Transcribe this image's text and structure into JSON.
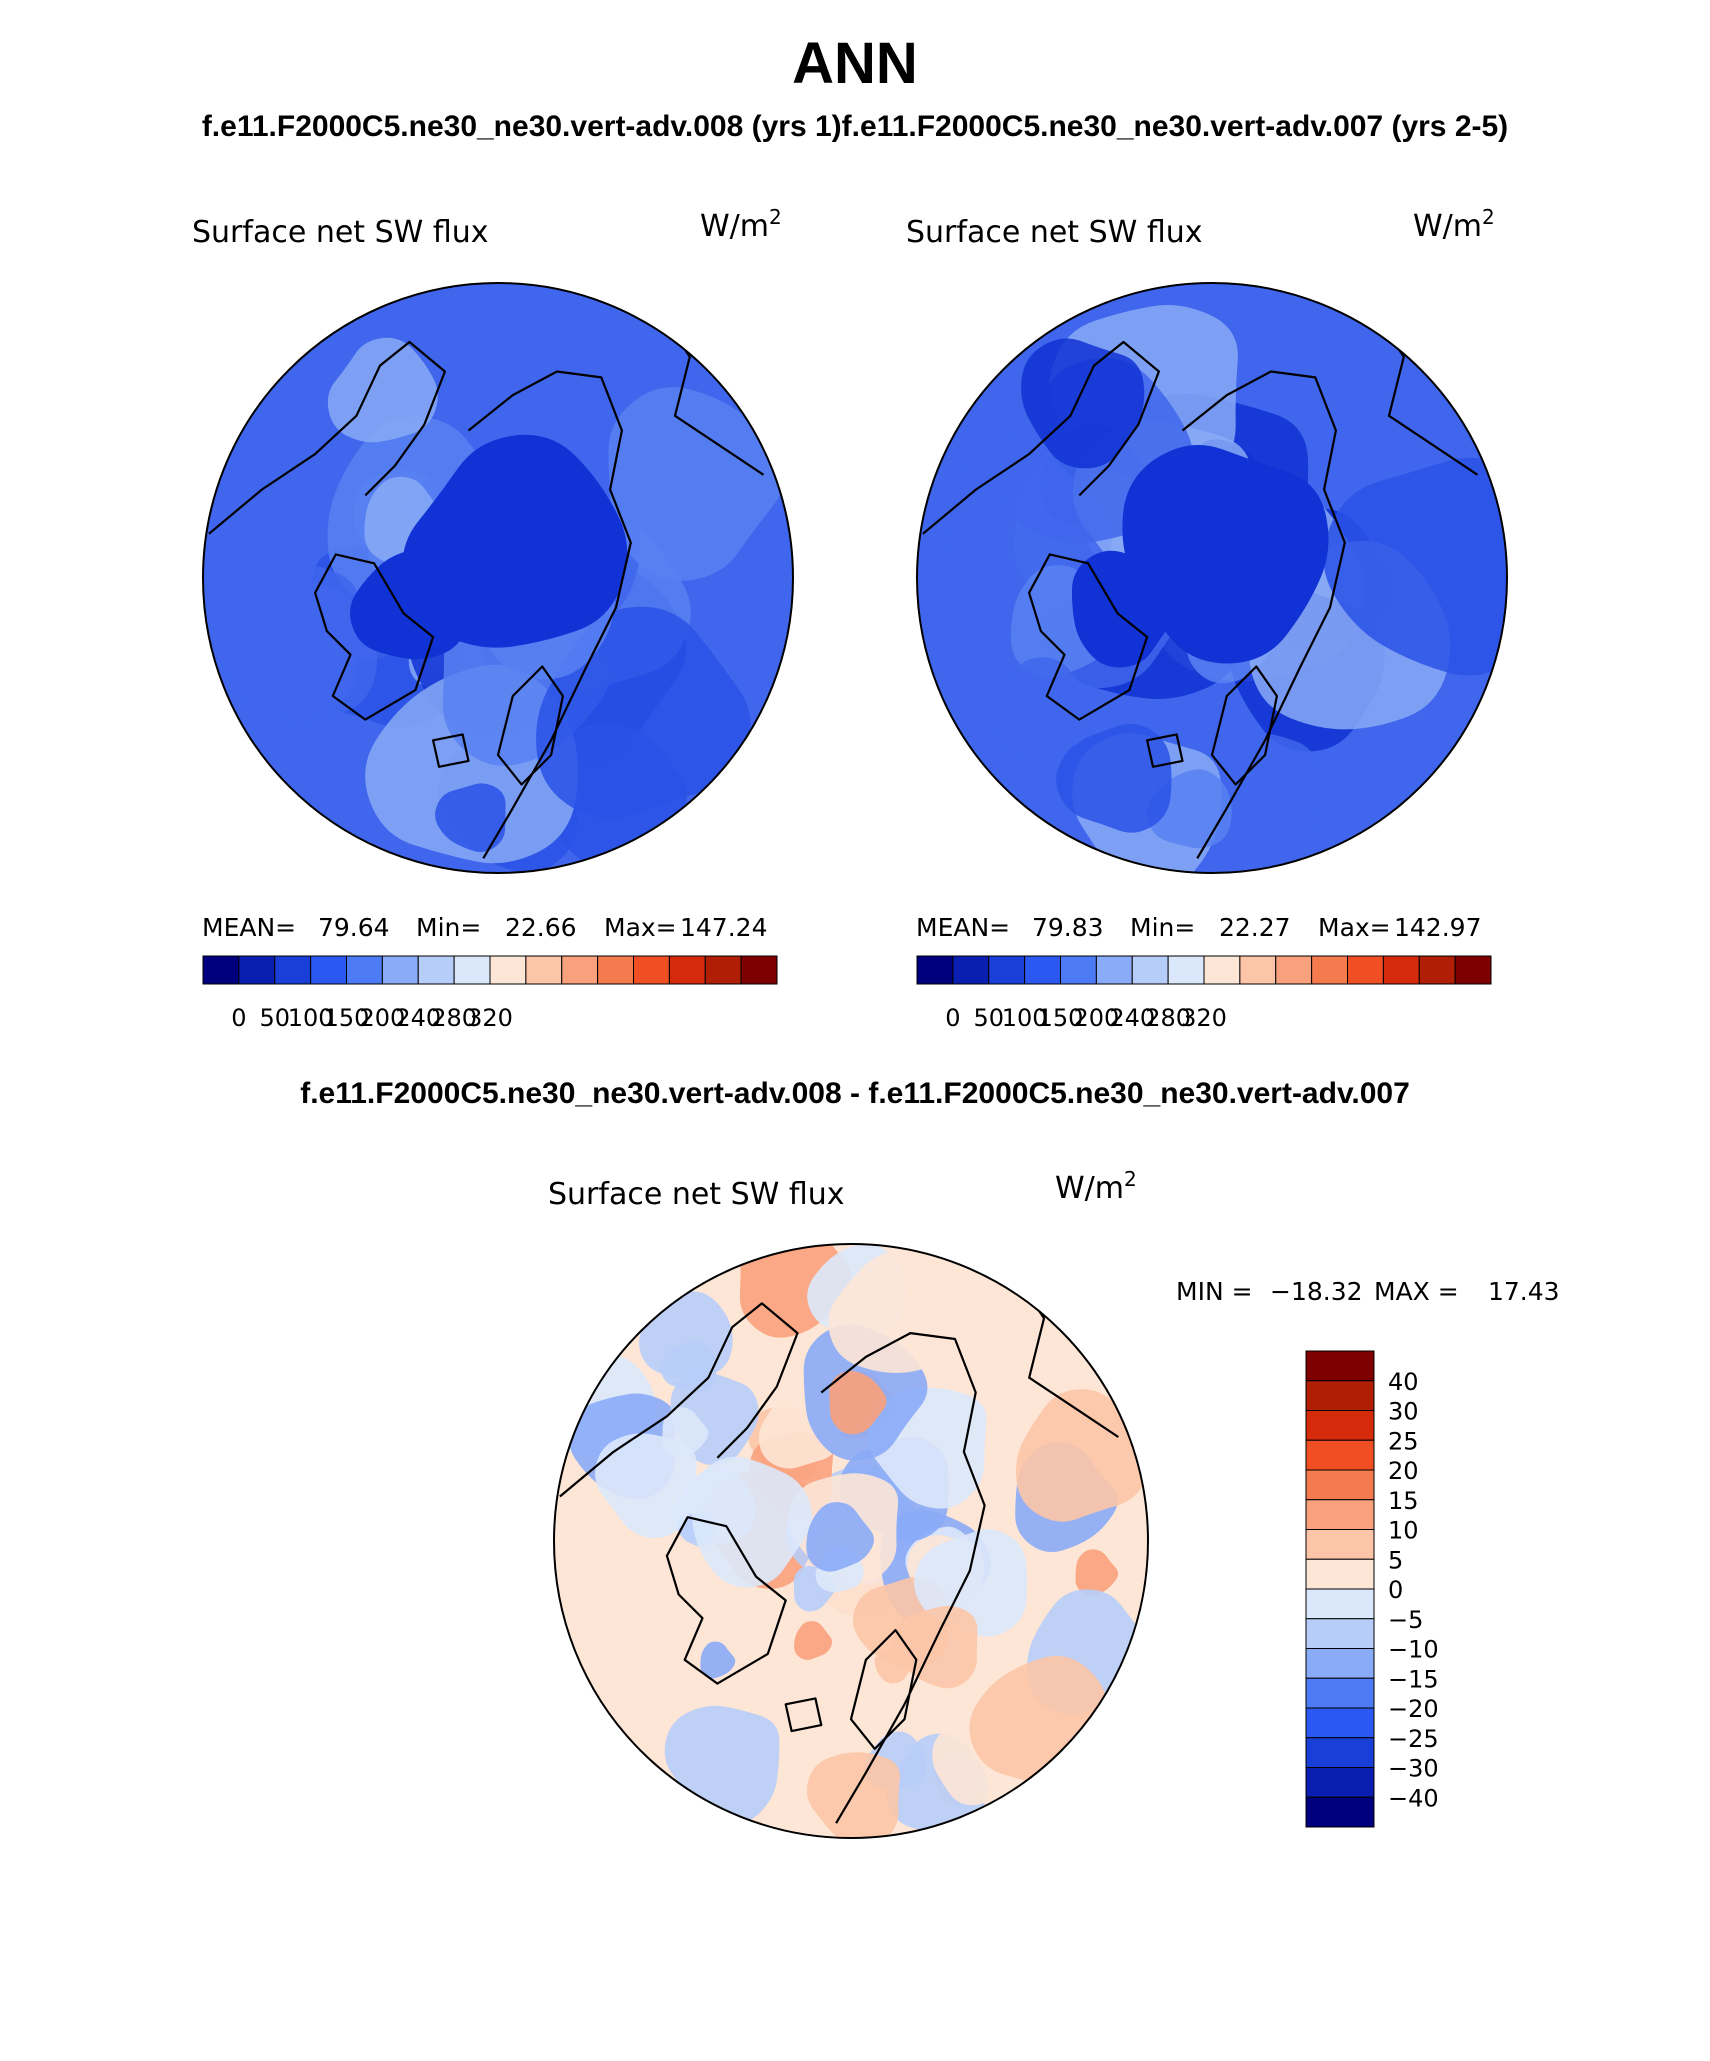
{
  "figure": {
    "title": "ANN",
    "subtitle_left": "f.e11.F2000C5.ne30_ne30.vert-adv.008 (yrs 1)",
    "subtitle_right": "f.e11.F2000C5.ne30_ne30.vert-adv.007 (yrs 2-5)",
    "diff_title": "f.e11.F2000C5.ne30_ne30.vert-adv.008 - f.e11.F2000C5.ne30_ne30.vert-adv.007"
  },
  "chart_data": [
    {
      "type": "heatmap",
      "projection": "polar-stereographic-north",
      "variable": "Surface net SW flux",
      "units": "W/m",
      "units_exp": "2",
      "stats": {
        "mean_label": "MEAN=",
        "mean": "79.64",
        "min_label": "Min=",
        "min": "22.66",
        "max_label": "Max=",
        "max": "147.24"
      },
      "colorbar_labels": [
        "0",
        "50",
        "100",
        "150",
        "200",
        "240",
        "280",
        "320"
      ],
      "colorbar_colors": [
        "#00007f",
        "#0a1fb2",
        "#1a3fd8",
        "#2a58f0",
        "#4d7af5",
        "#8aabf7",
        "#b7cdf9",
        "#dbe8fb",
        "#fde6d6",
        "#fcc5a7",
        "#f9a17c",
        "#f57b4f",
        "#ef4f23",
        "#d62a0c",
        "#b01e06",
        "#7f0000"
      ],
      "field_range_colors": [
        "#1132d4",
        "#2a52e6",
        "#3f66ec",
        "#5881f2",
        "#88aaf6"
      ]
    },
    {
      "type": "heatmap",
      "projection": "polar-stereographic-north",
      "variable": "Surface net SW flux",
      "units": "W/m",
      "units_exp": "2",
      "stats": {
        "mean_label": "MEAN=",
        "mean": "79.83",
        "min_label": "Min=",
        "min": "22.27",
        "max_label": "Max=",
        "max": "142.97"
      },
      "colorbar_labels": [
        "0",
        "50",
        "100",
        "150",
        "200",
        "240",
        "280",
        "320"
      ],
      "colorbar_colors": [
        "#00007f",
        "#0a1fb2",
        "#1a3fd8",
        "#2a58f0",
        "#4d7af5",
        "#8aabf7",
        "#b7cdf9",
        "#dbe8fb",
        "#fde6d6",
        "#fcc5a7",
        "#f9a17c",
        "#f57b4f",
        "#ef4f23",
        "#d62a0c",
        "#b01e06",
        "#7f0000"
      ],
      "field_range_colors": [
        "#1132d4",
        "#2a52e6",
        "#3f66ec",
        "#5881f2",
        "#88aaf6"
      ]
    },
    {
      "type": "heatmap",
      "projection": "polar-stereographic-north",
      "variable": "Surface net SW flux",
      "units": "W/m",
      "units_exp": "2",
      "stats": {
        "min_label": "MIN =",
        "min": "−18.32",
        "max_label": "MAX =",
        "max": "17.43"
      },
      "colorbar_labels": [
        "40",
        "30",
        "25",
        "20",
        "15",
        "10",
        "5",
        "0",
        "−5",
        "−10",
        "−15",
        "−20",
        "−25",
        "−30",
        "−40"
      ],
      "colorbar_colors": [
        "#7f0000",
        "#b01e06",
        "#d62a0c",
        "#ef4f23",
        "#f57b4f",
        "#f9a17c",
        "#fcc5a7",
        "#fde6d6",
        "#dbe8fb",
        "#b7cdf9",
        "#8aabf7",
        "#4d7af5",
        "#2a58f0",
        "#1a3fd8",
        "#0a1fb2",
        "#00007f"
      ],
      "field_range_colors": [
        "#dbe8fb",
        "#fde6d6",
        "#b7cdf9",
        "#fcc5a7",
        "#8aabf7",
        "#f9a17c"
      ]
    }
  ]
}
